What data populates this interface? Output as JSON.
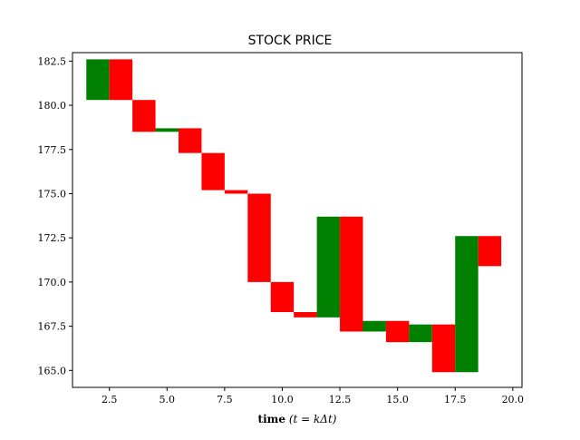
{
  "chart_data": {
    "type": "bar",
    "title": "STOCK PRICE",
    "xlabel": {
      "bold": "time",
      "math": "(t = kΔt)"
    },
    "ylabel": "",
    "xlim": [
      0.9,
      20.4
    ],
    "ylim": [
      164.04,
      182.98
    ],
    "grid": false,
    "bar_width": 1.0,
    "x_ticks": [
      {
        "value": 2.5,
        "label": "2.5"
      },
      {
        "value": 5.0,
        "label": "5.0"
      },
      {
        "value": 7.5,
        "label": "7.5"
      },
      {
        "value": 10.0,
        "label": "10.0"
      },
      {
        "value": 12.5,
        "label": "12.5"
      },
      {
        "value": 15.0,
        "label": "15.0"
      },
      {
        "value": 17.5,
        "label": "17.5"
      },
      {
        "value": 20.0,
        "label": "20.0"
      }
    ],
    "y_ticks": [
      {
        "value": 165.0,
        "label": "165.0"
      },
      {
        "value": 167.5,
        "label": "167.5"
      },
      {
        "value": 170.0,
        "label": "170.0"
      },
      {
        "value": 172.5,
        "label": "172.5"
      },
      {
        "value": 175.0,
        "label": "175.0"
      },
      {
        "value": 177.5,
        "label": "177.5"
      },
      {
        "value": 180.0,
        "label": "180.0"
      },
      {
        "value": 182.5,
        "label": "182.5"
      }
    ],
    "colors": {
      "up": "#008000",
      "down": "#ff0000"
    },
    "bars": [
      {
        "x": 2,
        "low": 180.3,
        "high": 182.6,
        "direction": "up"
      },
      {
        "x": 3,
        "low": 180.3,
        "high": 182.6,
        "direction": "down"
      },
      {
        "x": 4,
        "low": 178.5,
        "high": 180.3,
        "direction": "down"
      },
      {
        "x": 5,
        "low": 178.5,
        "high": 178.7,
        "direction": "up"
      },
      {
        "x": 6,
        "low": 177.3,
        "high": 178.7,
        "direction": "down"
      },
      {
        "x": 7,
        "low": 175.2,
        "high": 177.3,
        "direction": "down"
      },
      {
        "x": 8,
        "low": 175.0,
        "high": 175.2,
        "direction": "down"
      },
      {
        "x": 9,
        "low": 170.0,
        "high": 175.0,
        "direction": "down"
      },
      {
        "x": 10,
        "low": 168.3,
        "high": 170.0,
        "direction": "down"
      },
      {
        "x": 11,
        "low": 168.0,
        "high": 168.3,
        "direction": "down"
      },
      {
        "x": 12,
        "low": 168.0,
        "high": 173.7,
        "direction": "up"
      },
      {
        "x": 13,
        "low": 167.2,
        "high": 173.7,
        "direction": "down"
      },
      {
        "x": 14,
        "low": 167.2,
        "high": 167.8,
        "direction": "up"
      },
      {
        "x": 15,
        "low": 166.6,
        "high": 167.8,
        "direction": "down"
      },
      {
        "x": 16,
        "low": 166.6,
        "high": 167.6,
        "direction": "up"
      },
      {
        "x": 17,
        "low": 164.9,
        "high": 167.6,
        "direction": "down"
      },
      {
        "x": 18,
        "low": 164.9,
        "high": 172.6,
        "direction": "up"
      },
      {
        "x": 19,
        "low": 170.9,
        "high": 172.6,
        "direction": "down"
      }
    ]
  }
}
